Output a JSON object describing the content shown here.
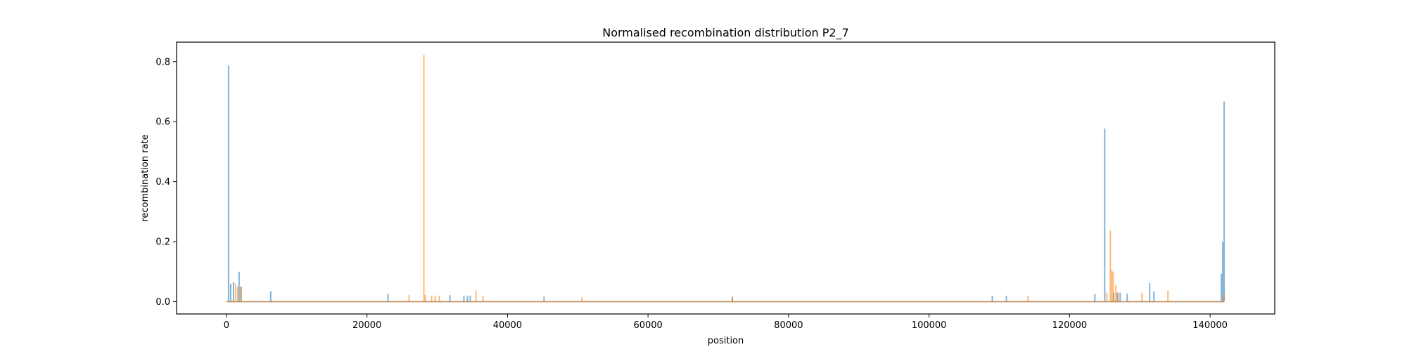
{
  "chart_data": {
    "type": "line",
    "title": "Normalised recombination distribution P2_7",
    "xlabel": "position",
    "ylabel": "recombination rate",
    "xlim": [
      -7100,
      149200
    ],
    "ylim": [
      -0.041,
      0.865
    ],
    "x_ticks": [
      0,
      20000,
      40000,
      60000,
      80000,
      100000,
      120000,
      140000
    ],
    "x_tick_labels": [
      "0",
      "20000",
      "40000",
      "60000",
      "80000",
      "100000",
      "120000",
      "140000"
    ],
    "y_ticks": [
      0.0,
      0.2,
      0.4,
      0.6,
      0.8
    ],
    "y_tick_labels": [
      "0.0",
      "0.2",
      "0.4",
      "0.6",
      "0.8"
    ],
    "grid": false,
    "legend": false,
    "baseline_range": [
      0,
      142000
    ],
    "series": [
      {
        "color": "#1f77b4",
        "opacity": 0.55,
        "spikes": [
          [
            300,
            0.787
          ],
          [
            600,
            0.06
          ],
          [
            1000,
            0.065
          ],
          [
            1800,
            0.1
          ],
          [
            2100,
            0.05
          ],
          [
            6300,
            0.035
          ],
          [
            23000,
            0.027
          ],
          [
            31800,
            0.022
          ],
          [
            33800,
            0.02
          ],
          [
            34300,
            0.02
          ],
          [
            34700,
            0.02
          ],
          [
            45200,
            0.017
          ],
          [
            72000,
            0.016
          ],
          [
            109000,
            0.02
          ],
          [
            111000,
            0.02
          ],
          [
            123600,
            0.025
          ],
          [
            125000,
            0.577
          ],
          [
            126300,
            0.03
          ],
          [
            126800,
            0.03
          ],
          [
            127200,
            0.03
          ],
          [
            128200,
            0.027
          ],
          [
            131400,
            0.062
          ],
          [
            132000,
            0.035
          ],
          [
            141600,
            0.093
          ],
          [
            141800,
            0.2
          ],
          [
            142000,
            0.667
          ]
        ]
      },
      {
        "color": "#ff7f0e",
        "opacity": 0.55,
        "spikes": [
          [
            1300,
            0.06
          ],
          [
            1600,
            0.05
          ],
          [
            2000,
            0.05
          ],
          [
            26000,
            0.022
          ],
          [
            28100,
            0.823
          ],
          [
            28300,
            0.022
          ],
          [
            29200,
            0.02
          ],
          [
            29700,
            0.02
          ],
          [
            30300,
            0.02
          ],
          [
            35500,
            0.037
          ],
          [
            36500,
            0.02
          ],
          [
            50600,
            0.015
          ],
          [
            72000,
            0.015
          ],
          [
            114100,
            0.02
          ],
          [
            125300,
            0.03
          ],
          [
            125800,
            0.238
          ],
          [
            126000,
            0.105
          ],
          [
            126200,
            0.1
          ],
          [
            126600,
            0.055
          ],
          [
            126900,
            0.03
          ],
          [
            130300,
            0.03
          ],
          [
            134000,
            0.037
          ],
          [
            142000,
            0.025
          ]
        ]
      }
    ]
  }
}
